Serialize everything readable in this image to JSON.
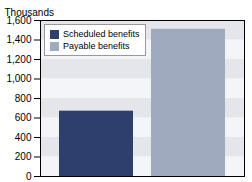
{
  "chart_data": {
    "type": "bar",
    "categories": [
      "Scheduled benefits",
      "Payable benefits"
    ],
    "values": [
      670,
      1510
    ],
    "colors": [
      "#2e3f6e",
      "#a0aabf"
    ],
    "ylabel": "Thousands",
    "ylim": [
      0,
      1600
    ],
    "yticks": [
      0,
      200,
      400,
      600,
      800,
      {
        "value": 1000,
        "label": "1,000"
      },
      {
        "value": 1200,
        "label": "1,200"
      },
      {
        "value": 1400,
        "label": "1,400"
      },
      {
        "value": 1600,
        "label": "1,600"
      }
    ],
    "grid": true,
    "legend": "upper left",
    "tick_labels": "y"
  }
}
